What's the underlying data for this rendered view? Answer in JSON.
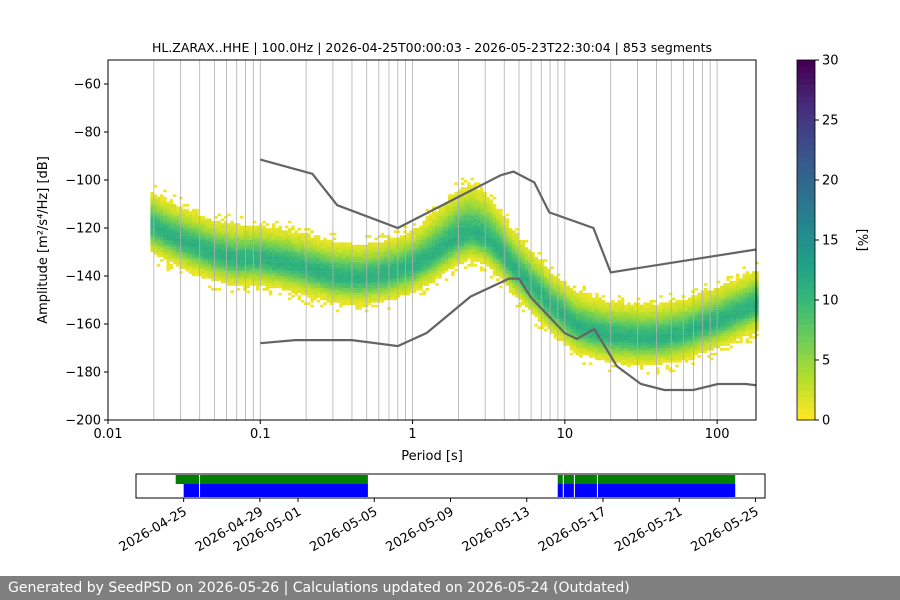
{
  "chart_data": {
    "type": "heatmap",
    "title": "HL.ZARAX..HHE | 100.0Hz | 2026-04-25T00:00:03 - 2026-05-23T22:30:04 | 853 segments",
    "xlabel": "Period [s]",
    "ylabel": "Amplitude [m²/s⁴/Hz] [dB]",
    "xscale": "log",
    "xlim": [
      0.01,
      180
    ],
    "ylim": [
      -200,
      -50
    ],
    "xticks": [
      "0.01",
      "0.1",
      "1",
      "10",
      "100"
    ],
    "yticks": [
      "−200",
      "−180",
      "−160",
      "−140",
      "−120",
      "−100",
      "−80",
      "−60"
    ],
    "grid": true,
    "colorbar": {
      "label": "[%]",
      "range": [
        0,
        30
      ],
      "ticks": [
        "0",
        "5",
        "10",
        "15",
        "20",
        "25",
        "30"
      ],
      "colormap": "viridis_r"
    },
    "noise_model_high": {
      "period": [
        0.1,
        0.22,
        0.32,
        0.8,
        3.8,
        4.6,
        6.3,
        7.9,
        15.4,
        20,
        354.8
      ],
      "db": [
        -91.5,
        -97.4,
        -110.5,
        -120,
        -98,
        -96.5,
        -101,
        -113.5,
        -120,
        -138.5,
        -126
      ]
    },
    "noise_model_low": {
      "period": [
        0.1,
        0.17,
        0.4,
        0.8,
        1.24,
        2.4,
        4.3,
        5,
        6,
        10,
        12,
        15.6,
        21.9,
        31.6,
        45,
        70,
        101,
        154,
        328
      ],
      "db": [
        -168,
        -166.7,
        -166.7,
        -169.2,
        -163.7,
        -148.6,
        -141.1,
        -141.1,
        -149,
        -163.8,
        -166.2,
        -162.1,
        -177.5,
        -185,
        -187.5,
        -187.5,
        -185,
        -185,
        -187.5
      ]
    },
    "psd_mode": {
      "period": [
        0.019,
        0.025,
        0.035,
        0.05,
        0.07,
        0.1,
        0.15,
        0.2,
        0.3,
        0.45,
        0.6,
        0.8,
        1.0,
        1.3,
        1.7,
        2.0,
        2.4,
        3.0,
        3.8,
        4.5,
        5.0,
        6.0,
        7.0,
        8.0,
        10,
        12,
        15,
        20,
        30,
        40,
        60,
        80,
        100,
        130,
        180
      ],
      "db": [
        -119,
        -123,
        -127,
        -131,
        -133,
        -133,
        -135,
        -137,
        -140,
        -141,
        -140,
        -138,
        -136,
        -132,
        -127,
        -124,
        -122,
        -124,
        -130,
        -136,
        -139,
        -144,
        -148,
        -152,
        -157,
        -161,
        -163,
        -165,
        -166,
        -166,
        -164,
        -161,
        -159,
        -156,
        -152
      ]
    },
    "timeline": {
      "date_ticks": [
        "2026-04-25",
        "2026-04-29",
        "2026-05-01",
        "2026-05-05",
        "2026-05-09",
        "2026-05-13",
        "2026-05-17",
        "2026-05-21",
        "2026-05-25"
      ],
      "green_segments": [
        [
          "2026-04-24T14:00",
          "2026-05-04T16:00"
        ],
        [
          "2026-05-14T15:00",
          "2026-05-23T22:30"
        ]
      ],
      "blue_segments": [
        [
          "2026-04-25T00:00",
          "2026-05-04T16:00"
        ],
        [
          "2026-05-14T15:00",
          "2026-05-23T22:30"
        ]
      ],
      "blue_gaps": [
        "2026-04-25T20:00",
        "2026-05-14T22:00",
        "2026-05-15T12:00",
        "2026-05-16T17:00"
      ]
    }
  },
  "footer": {
    "text": "Generated by SeedPSD on 2026-05-26 | Calculations updated on 2026-05-24 (Outdated)"
  }
}
